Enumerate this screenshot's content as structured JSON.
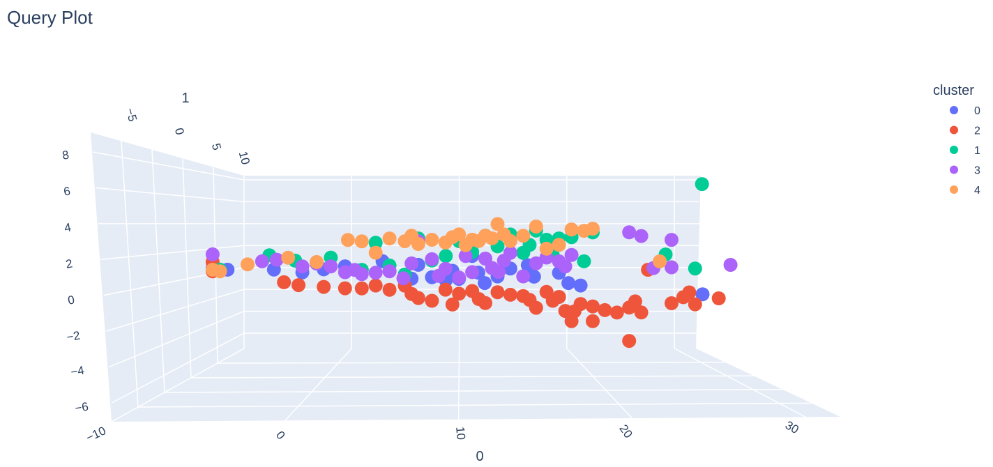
{
  "chart_data": {
    "type": "scatter",
    "title": "Query Plot",
    "xlabel": "0",
    "ylabel": "1",
    "zlabel": "",
    "x_ticks": [
      "−10",
      "0",
      "10",
      "20",
      "30"
    ],
    "y_ticks": [
      "−5",
      "0",
      "5",
      "10"
    ],
    "z_ticks": [
      "8",
      "6",
      "4",
      "2",
      "0",
      "−2",
      "−4",
      "−6"
    ],
    "xlim": [
      -10,
      32
    ],
    "ylim": [
      -7,
      12
    ],
    "zlim": [
      -7,
      9
    ],
    "grid": true,
    "legend_title": "cluster",
    "legend_position": "top-right",
    "series": [
      {
        "name": "0",
        "color": "#636efa",
        "points": [
          [
            -6.5,
            0,
            1.2
          ],
          [
            -6,
            0,
            1.1
          ],
          [
            -5.5,
            0,
            1.1
          ],
          [
            -3,
            2,
            1
          ],
          [
            -1,
            2,
            0.8
          ],
          [
            0.5,
            2,
            1
          ],
          [
            2,
            2,
            1.2
          ],
          [
            3,
            3,
            0.9
          ],
          [
            4.5,
            3,
            1.5
          ],
          [
            5,
            3,
            0.8
          ],
          [
            6,
            4,
            0.5
          ],
          [
            6.5,
            4,
            0.2
          ],
          [
            7,
            4,
            1.2
          ],
          [
            8,
            4,
            0.3
          ],
          [
            9,
            5,
            0
          ],
          [
            9.5,
            5,
            0.7
          ],
          [
            10,
            5,
            0.1
          ],
          [
            11,
            5,
            1.8
          ],
          [
            11.5,
            6,
            0.5
          ],
          [
            12,
            6,
            -0.3
          ],
          [
            13,
            6,
            0.2
          ],
          [
            14,
            6,
            0.8
          ],
          [
            15,
            6,
            2
          ],
          [
            15.5,
            7,
            1
          ],
          [
            16,
            7,
            0.1
          ],
          [
            18,
            7,
            0.4
          ],
          [
            19,
            8,
            -0.5
          ],
          [
            20,
            8,
            -0.7
          ],
          [
            28,
            4,
            -1
          ]
        ]
      },
      {
        "name": "2",
        "color": "#ef553b",
        "points": [
          [
            -6.5,
            0,
            1.6
          ],
          [
            -6.5,
            0,
            1
          ],
          [
            -2,
            1,
            0.2
          ],
          [
            -1,
            1,
            0
          ],
          [
            0.5,
            2,
            -0.2
          ],
          [
            2,
            2,
            -0.3
          ],
          [
            3,
            3,
            -0.4
          ],
          [
            4,
            3,
            -0.2
          ],
          [
            5,
            3,
            -0.5
          ],
          [
            6,
            4,
            -0.3
          ],
          [
            6.5,
            4,
            -0.9
          ],
          [
            7,
            4,
            -1.2
          ],
          [
            8,
            4,
            -1.4
          ],
          [
            9,
            4,
            -0.6
          ],
          [
            9.5,
            5,
            -1.8
          ],
          [
            10,
            5,
            -1
          ],
          [
            11,
            5,
            -0.8
          ],
          [
            11.5,
            5,
            -1.4
          ],
          [
            12,
            5,
            -1.7
          ],
          [
            13,
            6,
            -1
          ],
          [
            14,
            6,
            -1.2
          ],
          [
            15,
            6,
            -1.3
          ],
          [
            15.5,
            6,
            -1.6
          ],
          [
            16,
            6,
            -2.2
          ],
          [
            17,
            7,
            -1.1
          ],
          [
            17.5,
            7,
            -1.8
          ],
          [
            18,
            7,
            -1.5
          ],
          [
            18.5,
            7,
            -2.6
          ],
          [
            19,
            7,
            -3.4
          ],
          [
            19.5,
            8,
            -2.8
          ],
          [
            20,
            8,
            -2.2
          ],
          [
            21,
            8,
            -3.6
          ],
          [
            21,
            8,
            -2.4
          ],
          [
            22,
            8,
            -2.7
          ],
          [
            23,
            8,
            -2.9
          ],
          [
            24,
            8,
            -2.5
          ],
          [
            24.5,
            8,
            -2
          ],
          [
            25,
            8,
            -2.9
          ],
          [
            24,
            8,
            -5.2
          ],
          [
            26,
            9,
            0.5
          ],
          [
            28,
            9,
            -2.3
          ],
          [
            29,
            9,
            -1.8
          ],
          [
            29.5,
            9,
            -1.4
          ],
          [
            30,
            9,
            -2.4
          ],
          [
            32,
            9,
            -1.9
          ]
        ]
      },
      {
        "name": "1",
        "color": "#00cc96",
        "points": [
          [
            -6,
            0,
            1.1
          ],
          [
            -3,
            1,
            2
          ],
          [
            -1.5,
            2,
            1.6
          ],
          [
            1,
            2,
            1.8
          ],
          [
            3,
            3,
            0.9
          ],
          [
            4,
            3,
            2.8
          ],
          [
            5,
            3,
            1.2
          ],
          [
            6,
            4,
            0.5
          ],
          [
            7,
            4,
            3.1
          ],
          [
            8,
            4,
            1.5
          ],
          [
            9,
            5,
            1.8
          ],
          [
            10,
            5,
            2.9
          ],
          [
            11,
            5,
            2.1
          ],
          [
            12,
            5,
            3.3
          ],
          [
            13,
            6,
            2.5
          ],
          [
            14,
            6,
            3.4
          ],
          [
            15,
            6,
            2
          ],
          [
            15.5,
            6,
            2.6
          ],
          [
            16,
            6,
            3.7
          ],
          [
            17,
            7,
            3
          ],
          [
            17.5,
            7,
            1.8
          ],
          [
            18,
            7,
            3.1
          ],
          [
            19,
            7,
            3.2
          ],
          [
            20,
            7,
            1.3
          ],
          [
            21,
            8,
            3.6
          ],
          [
            27,
            8,
            1.8
          ],
          [
            30,
            8,
            7.5
          ],
          [
            30,
            9,
            0.6
          ]
        ]
      },
      {
        "name": "3",
        "color": "#ab63fa",
        "points": [
          [
            -6.5,
            0,
            2.1
          ],
          [
            -3.5,
            1,
            1.6
          ],
          [
            -2.5,
            1,
            1.7
          ],
          [
            -1,
            2,
            1.2
          ],
          [
            0,
            2,
            1.4
          ],
          [
            1,
            2,
            1.2
          ],
          [
            2,
            2,
            0.8
          ],
          [
            2.5,
            3,
            0.9
          ],
          [
            3,
            3,
            0.6
          ],
          [
            4,
            3,
            0.7
          ],
          [
            5,
            3,
            0.8
          ],
          [
            6,
            3,
            0.3
          ],
          [
            6.5,
            4,
            1.3
          ],
          [
            7,
            4,
            2.9
          ],
          [
            8,
            4,
            1.6
          ],
          [
            8.5,
            4,
            0.4
          ],
          [
            9,
            4,
            0.9
          ],
          [
            10,
            5,
            0.2
          ],
          [
            10.5,
            5,
            1.8
          ],
          [
            11,
            5,
            0.6
          ],
          [
            12,
            5,
            1.6
          ],
          [
            12.5,
            5,
            0.9
          ],
          [
            13,
            5,
            0.6
          ],
          [
            13.5,
            6,
            1.4
          ],
          [
            14,
            6,
            2
          ],
          [
            15,
            6,
            0.2
          ],
          [
            16,
            6,
            1.2
          ],
          [
            17,
            7,
            1.6
          ],
          [
            18,
            7,
            1.3
          ],
          [
            18.5,
            7,
            0.9
          ],
          [
            19,
            7,
            1.8
          ],
          [
            24,
            8,
            3.6
          ],
          [
            25,
            8,
            3.3
          ],
          [
            26,
            8,
            0.7
          ],
          [
            28,
            9,
            3
          ],
          [
            28,
            9,
            0.7
          ],
          [
            33,
            9,
            0.9
          ]
        ]
      },
      {
        "name": "4",
        "color": "#ffa15a",
        "points": [
          [
            -6.5,
            0,
            1.1
          ],
          [
            -6,
            0,
            1
          ],
          [
            -4.5,
            1,
            1.4
          ],
          [
            -2,
            2,
            1.8
          ],
          [
            0,
            2,
            1.5
          ],
          [
            2,
            3,
            3
          ],
          [
            3,
            3,
            2.9
          ],
          [
            4,
            3,
            2.1
          ],
          [
            5,
            3,
            3.1
          ],
          [
            6,
            4,
            2.9
          ],
          [
            6.5,
            4,
            3.3
          ],
          [
            7,
            4,
            2.7
          ],
          [
            8,
            4,
            3
          ],
          [
            9,
            4,
            2.8
          ],
          [
            9.5,
            5,
            3.2
          ],
          [
            10,
            5,
            3.4
          ],
          [
            10.5,
            5,
            2.6
          ],
          [
            11,
            5,
            3
          ],
          [
            11.5,
            5,
            2.9
          ],
          [
            12,
            5,
            3.3
          ],
          [
            12.5,
            5,
            3.1
          ],
          [
            13,
            6,
            4.2
          ],
          [
            13.5,
            6,
            3.4
          ],
          [
            14,
            6,
            2.9
          ],
          [
            15,
            6,
            3.3
          ],
          [
            16,
            6,
            4
          ],
          [
            17,
            7,
            2.3
          ],
          [
            18,
            7,
            2.6
          ],
          [
            19,
            7,
            3.8
          ],
          [
            20,
            7,
            3.7
          ],
          [
            21,
            8,
            3.9
          ],
          [
            27,
            9,
            1.2
          ]
        ]
      }
    ]
  }
}
